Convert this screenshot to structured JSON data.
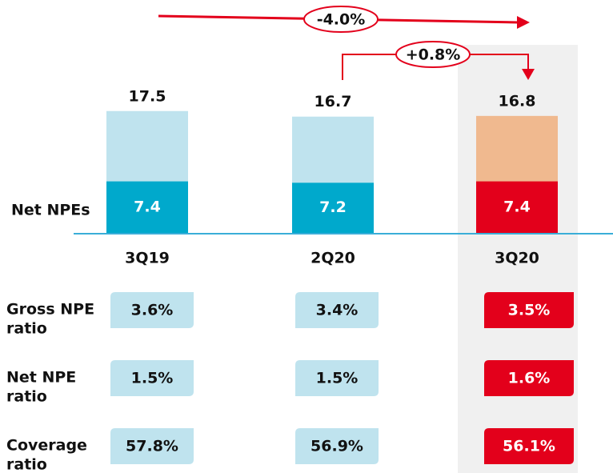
{
  "chart_data": {
    "type": "bar",
    "categories": [
      "3Q19",
      "2Q20",
      "3Q20"
    ],
    "totals": [
      17.5,
      16.7,
      16.8
    ],
    "total_colors": [
      "#bfe3ee",
      "#bfe3ee",
      "#f0b98f"
    ],
    "series": [
      {
        "name": "Net NPEs",
        "colors": [
          "#00a9cc",
          "#00a9cc",
          "#e3001b"
        ],
        "values": [
          7.4,
          7.2,
          7.4
        ]
      }
    ],
    "annotations": [
      "-4.0%",
      "+0.8%"
    ],
    "ratios": [
      {
        "label": [
          "Gross NPE",
          "ratio"
        ],
        "values": [
          "3.6%",
          "3.4%",
          "3.5%"
        ]
      },
      {
        "label": [
          "Net NPE",
          "ratio"
        ],
        "values": [
          "1.5%",
          "1.5%",
          "1.6%"
        ]
      },
      {
        "label": [
          "Coverage",
          "ratio"
        ],
        "values": [
          "57.8%",
          "56.9%",
          "56.1%"
        ]
      }
    ]
  }
}
